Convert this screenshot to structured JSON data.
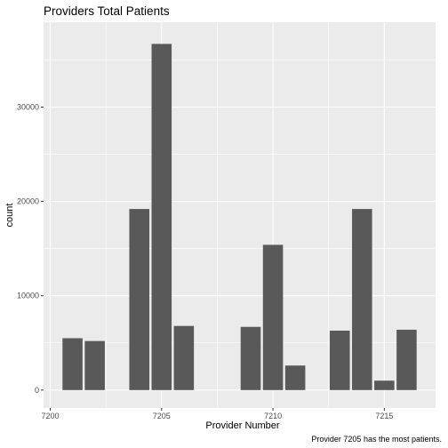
{
  "chart_data": {
    "type": "bar",
    "title": "Providers Total Patients",
    "xlabel": "Provider Number",
    "ylabel": "count",
    "caption": "Provider 7205 has the most patients.",
    "x": [
      7201,
      7202,
      7204,
      7205,
      7206,
      7209,
      7210,
      7211,
      7213,
      7214,
      7215,
      7216
    ],
    "values": [
      5500,
      5200,
      19200,
      36700,
      6800,
      6700,
      15400,
      2600,
      6300,
      19200,
      1000,
      6400
    ],
    "xlim": [
      7199.7,
      7217.3
    ],
    "ylim": [
      -1900,
      39000
    ],
    "x_ticks": [
      7200,
      7205,
      7210,
      7215
    ],
    "y_ticks": [
      0,
      10000,
      20000,
      30000
    ],
    "grid": true,
    "colors": {
      "panel": "#ebebeb",
      "grid": "#ffffff",
      "bar": "#595959"
    }
  }
}
